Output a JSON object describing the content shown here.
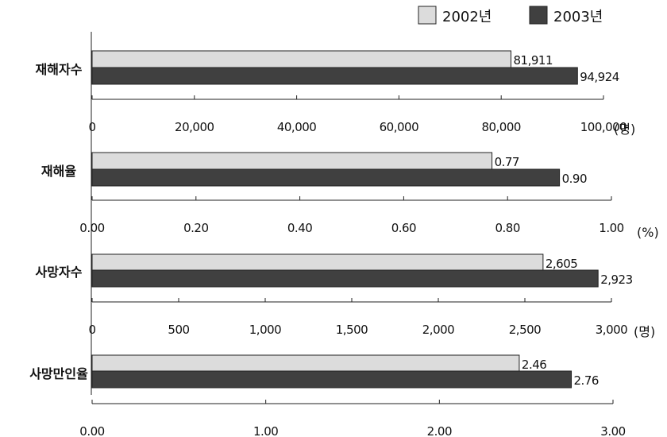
{
  "chart_data": {
    "type": "bar",
    "orientation": "horizontal",
    "legend": {
      "position": "top-right",
      "items": [
        {
          "name": "2002년",
          "color": "#dcdcdc"
        },
        {
          "name": "2003년",
          "color": "#404040"
        }
      ]
    },
    "panels": [
      {
        "label": "재해자수",
        "unit": "(명)",
        "xlim": [
          0,
          100000
        ],
        "ticks": [
          "0",
          "20,000",
          "40,000",
          "60,000",
          "80,000",
          "100,000"
        ],
        "tick_values": [
          0,
          20000,
          40000,
          60000,
          80000,
          100000
        ],
        "series": [
          {
            "name": "2002년",
            "value": 81911,
            "display": "81,911"
          },
          {
            "name": "2003년",
            "value": 94924,
            "display": "94,924"
          }
        ]
      },
      {
        "label": "재해율",
        "unit": "(%)",
        "xlim": [
          0,
          1.0
        ],
        "ticks": [
          "0.00",
          "0.20",
          "0.40",
          "0.60",
          "0.80",
          "1.00"
        ],
        "tick_values": [
          0,
          0.2,
          0.4,
          0.6,
          0.8,
          1.0
        ],
        "series": [
          {
            "name": "2002년",
            "value": 0.77,
            "display": "0.77"
          },
          {
            "name": "2003년",
            "value": 0.9,
            "display": "0.90"
          }
        ]
      },
      {
        "label": "사망자수",
        "unit": "(명)",
        "xlim": [
          0,
          3000
        ],
        "ticks": [
          "0",
          "500",
          "1,000",
          "1,500",
          "2,000",
          "2,500",
          "3,000"
        ],
        "tick_values": [
          0,
          500,
          1000,
          1500,
          2000,
          2500,
          3000
        ],
        "series": [
          {
            "name": "2002년",
            "value": 2605,
            "display": "2,605"
          },
          {
            "name": "2003년",
            "value": 2923,
            "display": "2,923"
          }
        ]
      },
      {
        "label": "사망만인율",
        "unit": "",
        "xlim": [
          0,
          3.0
        ],
        "ticks": [
          "0.00",
          "1.00",
          "2.00",
          "3.00"
        ],
        "tick_values": [
          0,
          1.0,
          2.0,
          3.0
        ],
        "series": [
          {
            "name": "2002년",
            "value": 2.46,
            "display": "2.46"
          },
          {
            "name": "2003년",
            "value": 2.76,
            "display": "2.76"
          }
        ]
      }
    ]
  }
}
